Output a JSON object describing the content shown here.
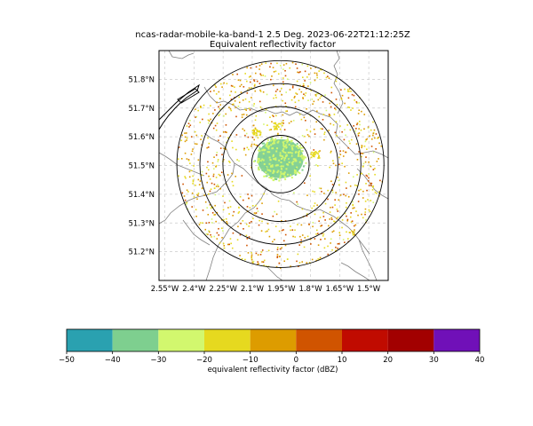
{
  "chart_data": {
    "type": "heatmap",
    "title_line1": "ncas-radar-mobile-ka-band-1 2.5 Deg. 2023-06-22T21:12:25Z",
    "title_line2": "Equivalent reflectivity factor",
    "lon_range": [
      -2.58,
      -1.4
    ],
    "lat_range": [
      51.1,
      51.9
    ],
    "radar_center": {
      "lon": -1.955,
      "lat": 51.505
    },
    "range_rings_deg_lat": [
      0.1,
      0.2,
      0.28,
      0.36
    ],
    "x_ticks": [
      {
        "value": -2.55,
        "label": "2.55°W"
      },
      {
        "value": -2.4,
        "label": "2.4°W"
      },
      {
        "value": -2.25,
        "label": "2.25°W"
      },
      {
        "value": -2.1,
        "label": "2.1°W"
      },
      {
        "value": -1.95,
        "label": "1.95°W"
      },
      {
        "value": -1.8,
        "label": "1.8°W"
      },
      {
        "value": -1.65,
        "label": "1.65°W"
      },
      {
        "value": -1.5,
        "label": "1.5°W"
      }
    ],
    "y_ticks": [
      {
        "value": 51.2,
        "label": "51.2°N"
      },
      {
        "value": 51.3,
        "label": "51.3°N"
      },
      {
        "value": 51.4,
        "label": "51.4°N"
      },
      {
        "value": 51.5,
        "label": "51.5°N"
      },
      {
        "value": 51.6,
        "label": "51.6°N"
      },
      {
        "value": 51.7,
        "label": "51.7°N"
      },
      {
        "value": 51.8,
        "label": "51.8°N"
      }
    ],
    "grid": true,
    "central_echo_dbz": -32,
    "colorbar": {
      "label": "equivalent reflectivity factor (dBZ)",
      "range": [
        -50,
        40
      ],
      "ticks": [
        {
          "value": -50,
          "label": "−50"
        },
        {
          "value": -40,
          "label": "−40"
        },
        {
          "value": -30,
          "label": "−30"
        },
        {
          "value": -20,
          "label": "−20"
        },
        {
          "value": -10,
          "label": "−10"
        },
        {
          "value": 0,
          "label": "0"
        },
        {
          "value": 10,
          "label": "10"
        },
        {
          "value": 20,
          "label": "20"
        },
        {
          "value": 30,
          "label": "30"
        },
        {
          "value": 40,
          "label": "40"
        }
      ],
      "bins": [
        {
          "from": -50,
          "to": -40,
          "color": "#2aa1b0"
        },
        {
          "from": -40,
          "to": -30,
          "color": "#7ecf8f"
        },
        {
          "from": -30,
          "to": -20,
          "color": "#d2f76e"
        },
        {
          "from": -20,
          "to": -10,
          "color": "#e6d91f"
        },
        {
          "from": -10,
          "to": 0,
          "color": "#dd9c00"
        },
        {
          "from": 0,
          "to": 10,
          "color": "#d05400"
        },
        {
          "from": 10,
          "to": 20,
          "color": "#c00b00"
        },
        {
          "from": 20,
          "to": 30,
          "color": "#a20000"
        },
        {
          "from": 30,
          "to": 40,
          "color": "#7010b8"
        }
      ]
    }
  }
}
